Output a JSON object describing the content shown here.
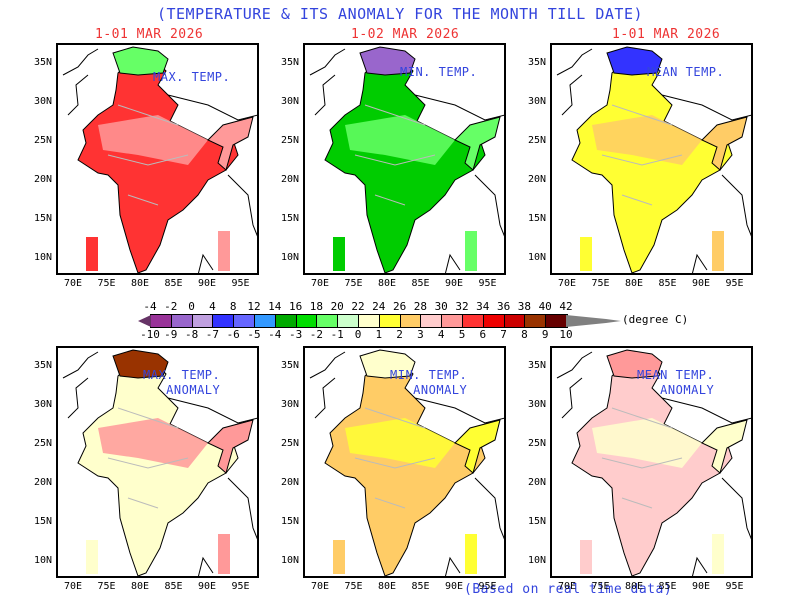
{
  "title": "(TEMPERATURE & ITS  ANOMALY FOR THE MONTH TILL DATE)",
  "dates": [
    "1-01 MAR 2026",
    "1-02 MAR 2026",
    "1-01 MAR 2026"
  ],
  "footer": "(Based on real time data)",
  "axes": {
    "lat_ticks": [
      "35N",
      "30N",
      "25N",
      "20N",
      "15N",
      "10N"
    ],
    "lon_ticks": [
      "70E",
      "75E",
      "80E",
      "85E",
      "90E",
      "95E"
    ]
  },
  "panels": [
    {
      "id": "max-temp",
      "label": "MAX. TEMP.",
      "fill": "#ff3333",
      "accent": "#ff9999",
      "north": "#66ff66"
    },
    {
      "id": "min-temp",
      "label": "MIN. TEMP.",
      "fill": "#00cc00",
      "accent": "#66ff66",
      "north": "#9966cc"
    },
    {
      "id": "mean-temp",
      "label": "MEAN TEMP.",
      "fill": "#ffff33",
      "accent": "#ffcc66",
      "north": "#3333ff"
    },
    {
      "id": "max-temp-anomaly",
      "label": "MAX. TEMP.\nANOMALY",
      "fill": "#ffffcc",
      "accent": "#ff9999",
      "north": "#993300"
    },
    {
      "id": "min-temp-anomaly",
      "label": "MIN. TEMP.\nANOMALY",
      "fill": "#ffcc66",
      "accent": "#ffff33",
      "north": "#ffffcc"
    },
    {
      "id": "mean-temp-anomaly",
      "label": "MEAN TEMP.\nANOMALY",
      "fill": "#ffcccc",
      "accent": "#ffffcc",
      "north": "#ff9999"
    }
  ],
  "colorbar": {
    "unit": "(degree C)",
    "top_labels": [
      "-4",
      "-2",
      "0",
      "4",
      "8",
      "12",
      "14",
      "16",
      "18",
      "20",
      "22",
      "24",
      "26",
      "28",
      "30",
      "32",
      "34",
      "36",
      "38",
      "40",
      "42"
    ],
    "bottom_labels": [
      "-10",
      "-9",
      "-8",
      "-7",
      "-6",
      "-5",
      "-4",
      "-3",
      "-2",
      "-1",
      "0",
      "1",
      "2",
      "3",
      "4",
      "5",
      "6",
      "7",
      "8",
      "9",
      "10"
    ],
    "colors": [
      "#993399",
      "#9966cc",
      "#c0a0e0",
      "#3333ff",
      "#6666ff",
      "#3399ff",
      "#00aa00",
      "#00dd00",
      "#66ff66",
      "#ccffcc",
      "#ffffcc",
      "#ffff33",
      "#ffcc66",
      "#ffcccc",
      "#ff9999",
      "#ff3333",
      "#ee0000",
      "#cc0000",
      "#993300",
      "#660000"
    ],
    "under_color": "#663366",
    "over_color": "#808080"
  }
}
